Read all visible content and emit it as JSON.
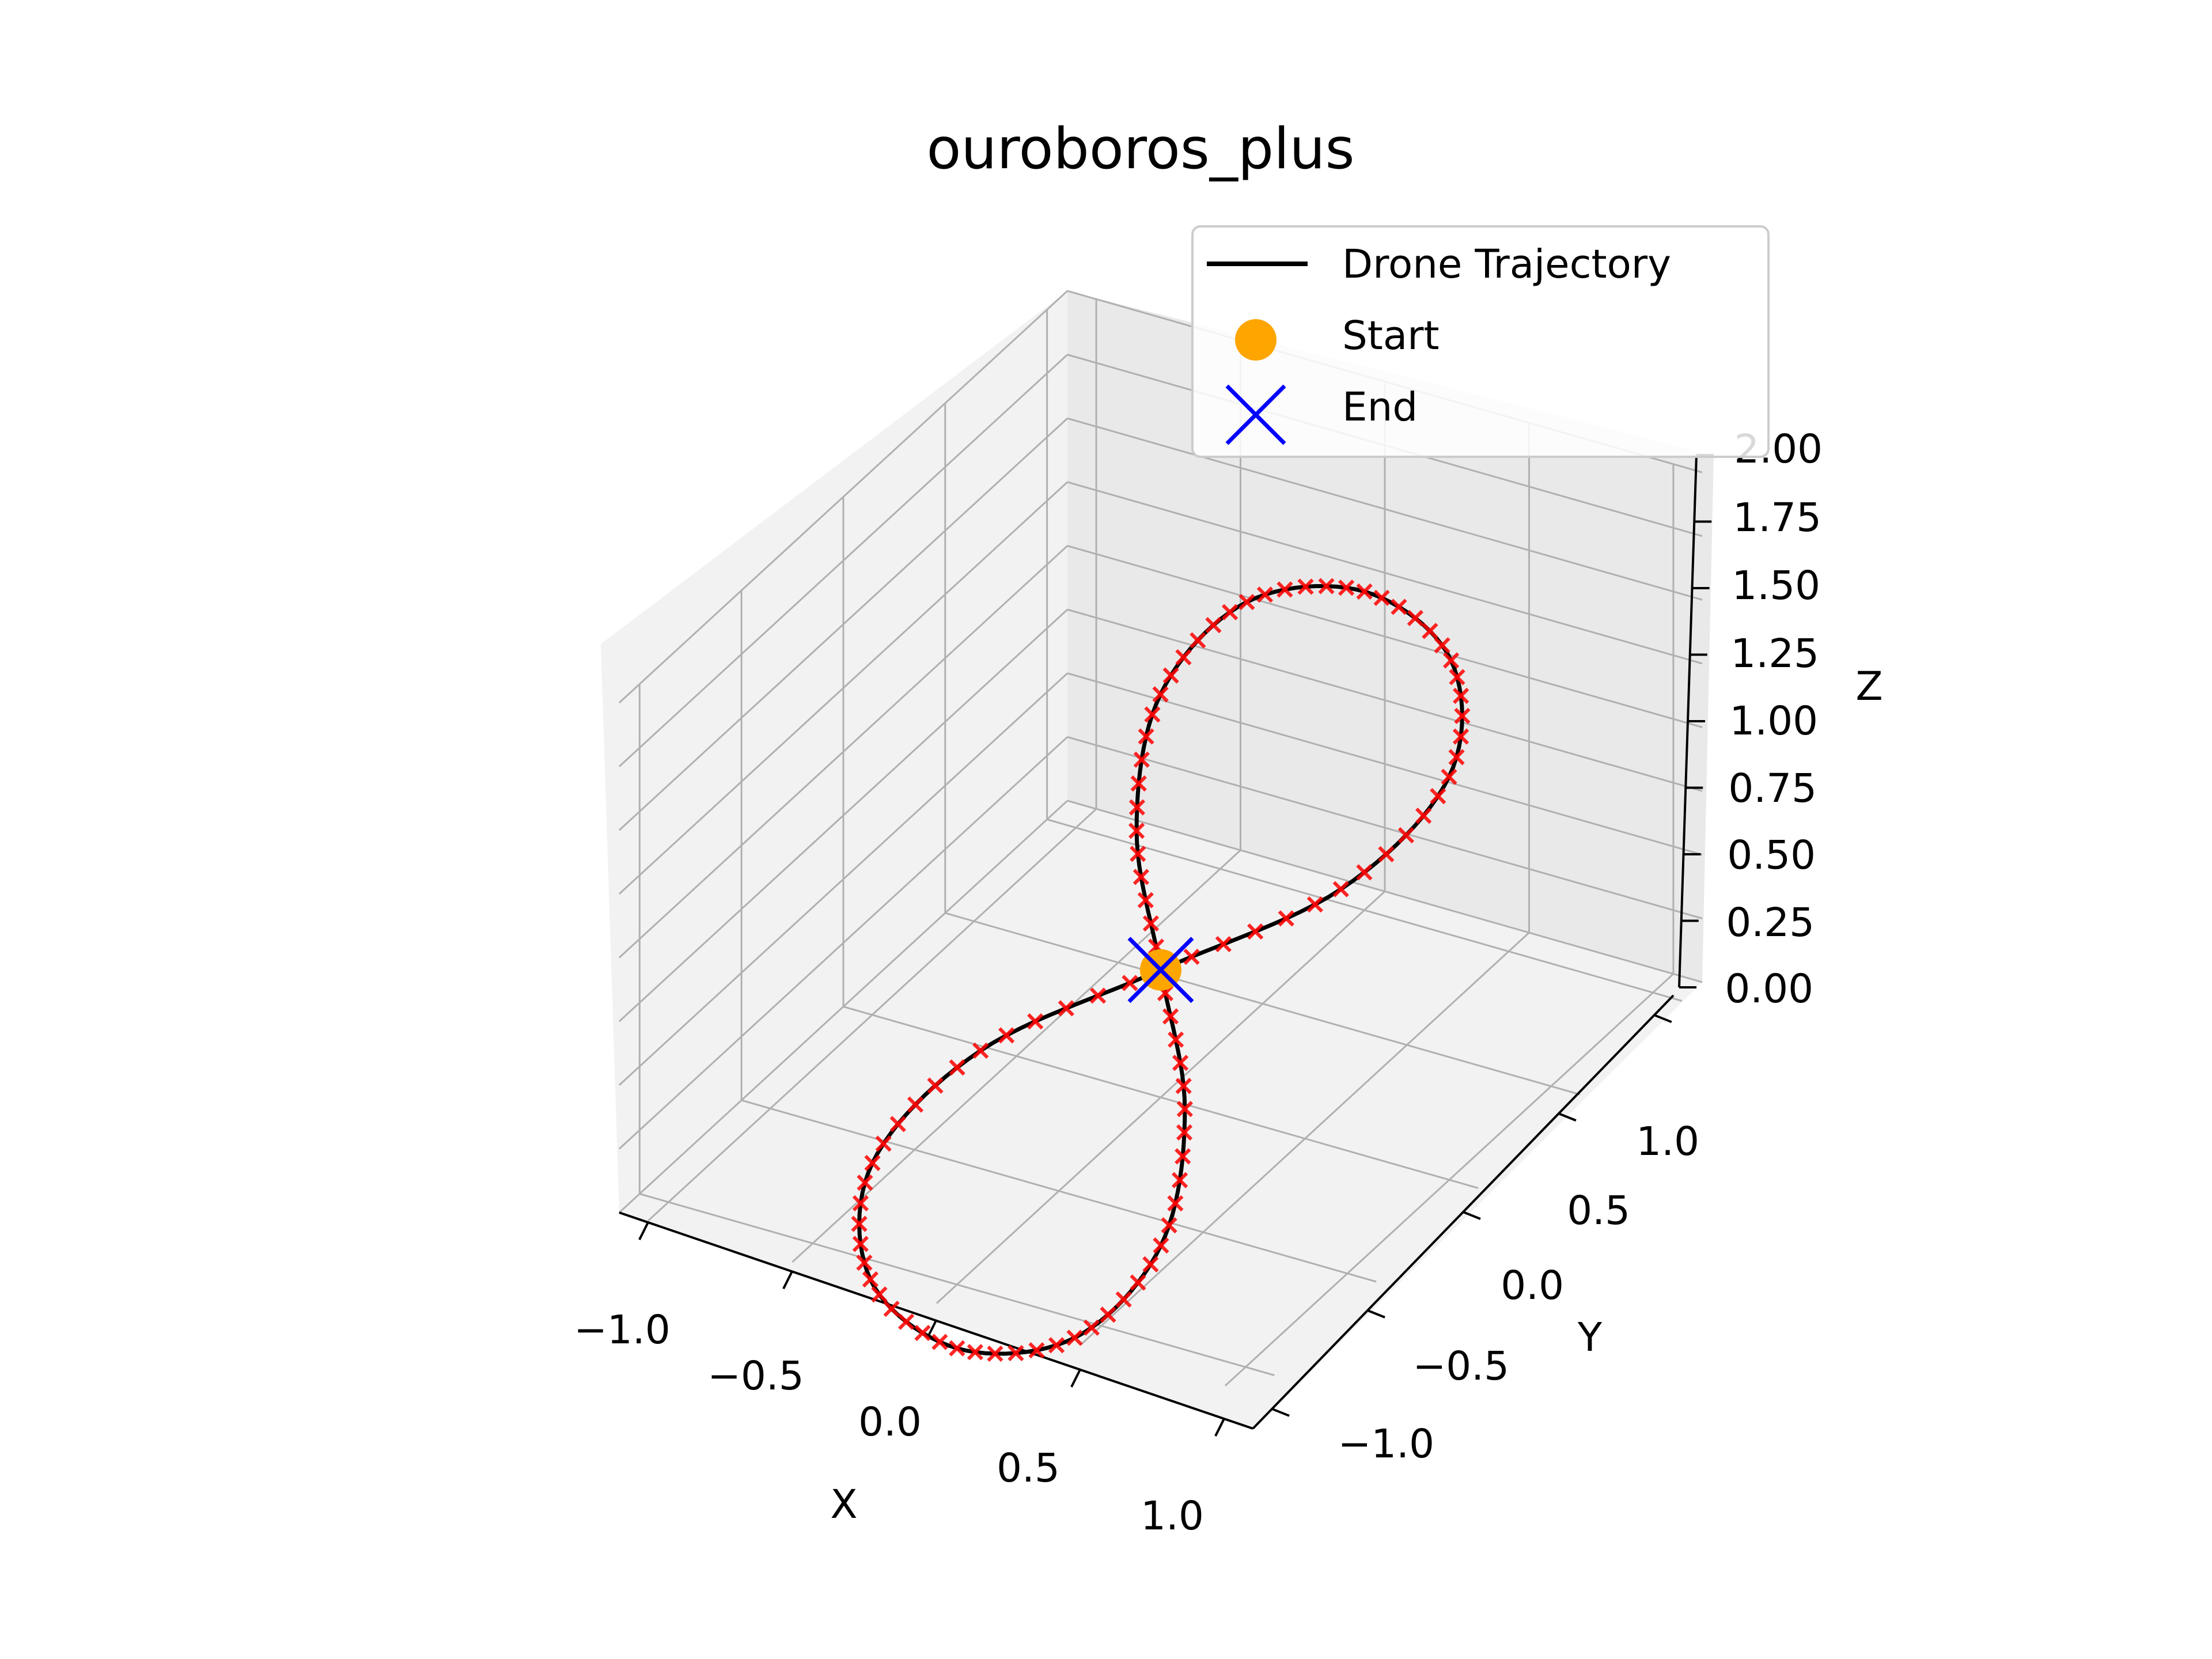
{
  "chart_data": {
    "type": "line",
    "projection": "3d",
    "title": "ouroboros_plus",
    "xlabel": "X",
    "ylabel": "Y",
    "zlabel": "Z",
    "xlim": [
      -1.1,
      1.1
    ],
    "ylim": [
      -1.1,
      1.1
    ],
    "zlim": [
      0.0,
      2.0
    ],
    "x_ticks": [
      "−1.0",
      "−0.5",
      "0.0",
      "0.5",
      "1.0"
    ],
    "y_ticks": [
      "−1.0",
      "−0.5",
      "0.0",
      "0.5",
      "1.0"
    ],
    "z_ticks": [
      "0.00",
      "0.25",
      "0.50",
      "0.75",
      "1.00",
      "1.25",
      "1.50",
      "1.75",
      "2.00"
    ],
    "grid": true,
    "legend_position": "top-right",
    "legend": [
      "Drone Trajectory",
      "Start",
      "End"
    ],
    "colors": {
      "trajectory": "#000000",
      "waypoints": "#ff0000",
      "start": "#ffa500",
      "end": "#0000ff"
    },
    "series": [
      {
        "name": "Drone Trajectory",
        "kind": "line",
        "x": [
          0.0,
          0.383,
          0.707,
          0.924,
          1.0,
          0.924,
          0.707,
          0.383,
          0.0,
          -0.383,
          -0.707,
          -0.924,
          -1.0,
          -0.924,
          -0.707,
          -0.383,
          0.0
        ],
        "y": [
          0.0,
          0.354,
          0.5,
          0.354,
          0.0,
          -0.354,
          -0.5,
          -0.354,
          0.0,
          0.354,
          0.5,
          0.354,
          0.0,
          -0.354,
          -0.5,
          -0.354,
          0.0
        ],
        "z": [
          0.5,
          0.35,
          0.1,
          -0.15,
          -0.25,
          -0.15,
          0.1,
          0.35,
          0.5,
          0.65,
          0.9,
          1.15,
          1.25,
          1.15,
          0.9,
          0.65,
          0.5
        ]
      },
      {
        "name": "Start",
        "kind": "point",
        "x": 0.0,
        "y": 0.0,
        "z": 0.5
      },
      {
        "name": "End",
        "kind": "point",
        "x": 0.0,
        "y": 0.0,
        "z": 0.5
      }
    ]
  }
}
